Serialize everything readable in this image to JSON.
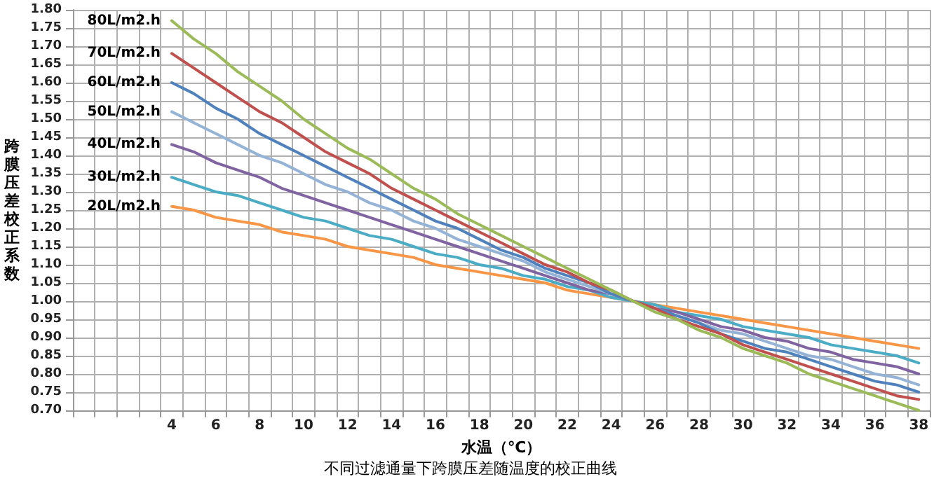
{
  "chart_data": {
    "type": "line",
    "title": "不同过滤通量下跨膜压差随温度的校正曲线",
    "xlabel": "水温（℃）",
    "ylabel": "跨膜压差校正系数",
    "categories": [
      null,
      null,
      null,
      null,
      "4",
      null,
      "6",
      null,
      "8",
      null,
      "10",
      null,
      "12",
      null,
      "14",
      null,
      "16",
      null,
      "18",
      null,
      "20",
      null,
      "22",
      null,
      "24",
      null,
      "26",
      null,
      "28",
      null,
      "30",
      null,
      "32",
      null,
      "34",
      null,
      "36",
      null,
      "38"
    ],
    "series": [
      {
        "name": "20L/m2.h",
        "color": "#f79646",
        "values": [
          null,
          null,
          null,
          null,
          1.26,
          1.25,
          1.23,
          1.22,
          1.21,
          1.19,
          1.18,
          1.17,
          1.15,
          1.14,
          1.13,
          1.12,
          1.1,
          1.09,
          1.08,
          1.07,
          1.06,
          1.05,
          1.03,
          1.02,
          1.01,
          1.0,
          0.99,
          0.98,
          0.97,
          0.96,
          0.95,
          0.94,
          0.93,
          0.92,
          0.91,
          0.9,
          0.89,
          0.88,
          0.87
        ]
      },
      {
        "name": "30L/m2.h",
        "color": "#4bacc6",
        "values": [
          null,
          null,
          null,
          null,
          1.34,
          1.32,
          1.3,
          1.29,
          1.27,
          1.25,
          1.23,
          1.22,
          1.2,
          1.18,
          1.17,
          1.15,
          1.13,
          1.12,
          1.1,
          1.09,
          1.07,
          1.06,
          1.04,
          1.03,
          1.01,
          1.0,
          0.99,
          0.97,
          0.96,
          0.95,
          0.93,
          0.92,
          0.91,
          0.9,
          0.88,
          0.87,
          0.86,
          0.85,
          0.83
        ]
      },
      {
        "name": "40L/m2.h",
        "color": "#8064a2",
        "values": [
          null,
          null,
          null,
          null,
          1.43,
          1.41,
          1.38,
          1.36,
          1.34,
          1.31,
          1.29,
          1.27,
          1.25,
          1.23,
          1.21,
          1.19,
          1.17,
          1.15,
          1.13,
          1.11,
          1.09,
          1.07,
          1.05,
          1.03,
          1.02,
          1.0,
          0.98,
          0.97,
          0.95,
          0.93,
          0.92,
          0.9,
          0.89,
          0.87,
          0.86,
          0.84,
          0.83,
          0.82,
          0.8
        ]
      },
      {
        "name": "50L/m2.h",
        "color": "#95b3d7",
        "values": [
          null,
          null,
          null,
          null,
          1.52,
          1.49,
          1.46,
          1.43,
          1.4,
          1.38,
          1.35,
          1.32,
          1.3,
          1.27,
          1.25,
          1.22,
          1.2,
          1.17,
          1.15,
          1.13,
          1.11,
          1.08,
          1.06,
          1.04,
          1.02,
          1.0,
          0.98,
          0.96,
          0.94,
          0.92,
          0.91,
          0.89,
          0.87,
          0.85,
          0.84,
          0.82,
          0.8,
          0.79,
          0.77
        ]
      },
      {
        "name": "60L/m2.h",
        "color": "#4f81bd",
        "values": [
          null,
          null,
          null,
          null,
          1.6,
          1.57,
          1.53,
          1.5,
          1.46,
          1.43,
          1.4,
          1.37,
          1.34,
          1.31,
          1.28,
          1.25,
          1.22,
          1.2,
          1.17,
          1.14,
          1.12,
          1.09,
          1.07,
          1.05,
          1.02,
          1.0,
          0.98,
          0.96,
          0.94,
          0.91,
          0.89,
          0.87,
          0.86,
          0.84,
          0.82,
          0.8,
          0.78,
          0.77,
          0.75
        ]
      },
      {
        "name": "70L/m2.h",
        "color": "#c0504d",
        "values": [
          null,
          null,
          null,
          null,
          1.68,
          1.64,
          1.6,
          1.56,
          1.52,
          1.49,
          1.45,
          1.41,
          1.38,
          1.35,
          1.31,
          1.28,
          1.25,
          1.22,
          1.19,
          1.16,
          1.13,
          1.1,
          1.08,
          1.05,
          1.03,
          1.0,
          0.98,
          0.95,
          0.93,
          0.91,
          0.88,
          0.86,
          0.84,
          0.82,
          0.8,
          0.78,
          0.76,
          0.74,
          0.73
        ]
      },
      {
        "name": "80L/m2.h",
        "color": "#9bbb59",
        "values": [
          null,
          null,
          null,
          null,
          1.77,
          1.72,
          1.68,
          1.63,
          1.59,
          1.55,
          1.5,
          1.46,
          1.42,
          1.39,
          1.35,
          1.31,
          1.28,
          1.24,
          1.21,
          1.18,
          1.15,
          1.12,
          1.09,
          1.06,
          1.03,
          1.0,
          0.97,
          0.95,
          0.92,
          0.9,
          0.87,
          0.85,
          0.83,
          0.8,
          0.78,
          0.76,
          0.74,
          0.72,
          0.7
        ]
      }
    ],
    "ylim": [
      0.7,
      1.8
    ],
    "yticks": [
      {
        "value": 0.7,
        "label": "0.70"
      },
      {
        "value": 0.75,
        "label": "0.75"
      },
      {
        "value": 0.8,
        "label": "0.80"
      },
      {
        "value": 0.85,
        "label": "0.85"
      },
      {
        "value": 0.9,
        "label": "0.90"
      },
      {
        "value": 0.95,
        "label": "0.95"
      },
      {
        "value": 1.0,
        "label": "1.00"
      },
      {
        "value": 1.05,
        "label": "1.05"
      },
      {
        "value": 1.1,
        "label": "1.10"
      },
      {
        "value": 1.15,
        "label": "1.15"
      },
      {
        "value": 1.2,
        "label": "1.20"
      },
      {
        "value": 1.25,
        "label": "1.25"
      },
      {
        "value": 1.3,
        "label": "1.30"
      },
      {
        "value": 1.35,
        "label": "1.35"
      },
      {
        "value": 1.4,
        "label": "1.40"
      },
      {
        "value": 1.45,
        "label": "1.45"
      },
      {
        "value": 1.5,
        "label": "1.50"
      },
      {
        "value": 1.55,
        "label": "1.55"
      },
      {
        "value": 1.6,
        "label": "1.60"
      },
      {
        "value": 1.65,
        "label": "1.65"
      },
      {
        "value": 1.7,
        "label": "1.70"
      },
      {
        "value": 1.75,
        "label": "1.75"
      },
      {
        "value": 1.8,
        "label": "1.80"
      }
    ],
    "grid": true,
    "legend": false,
    "marker": "none",
    "line_style": "solid"
  }
}
